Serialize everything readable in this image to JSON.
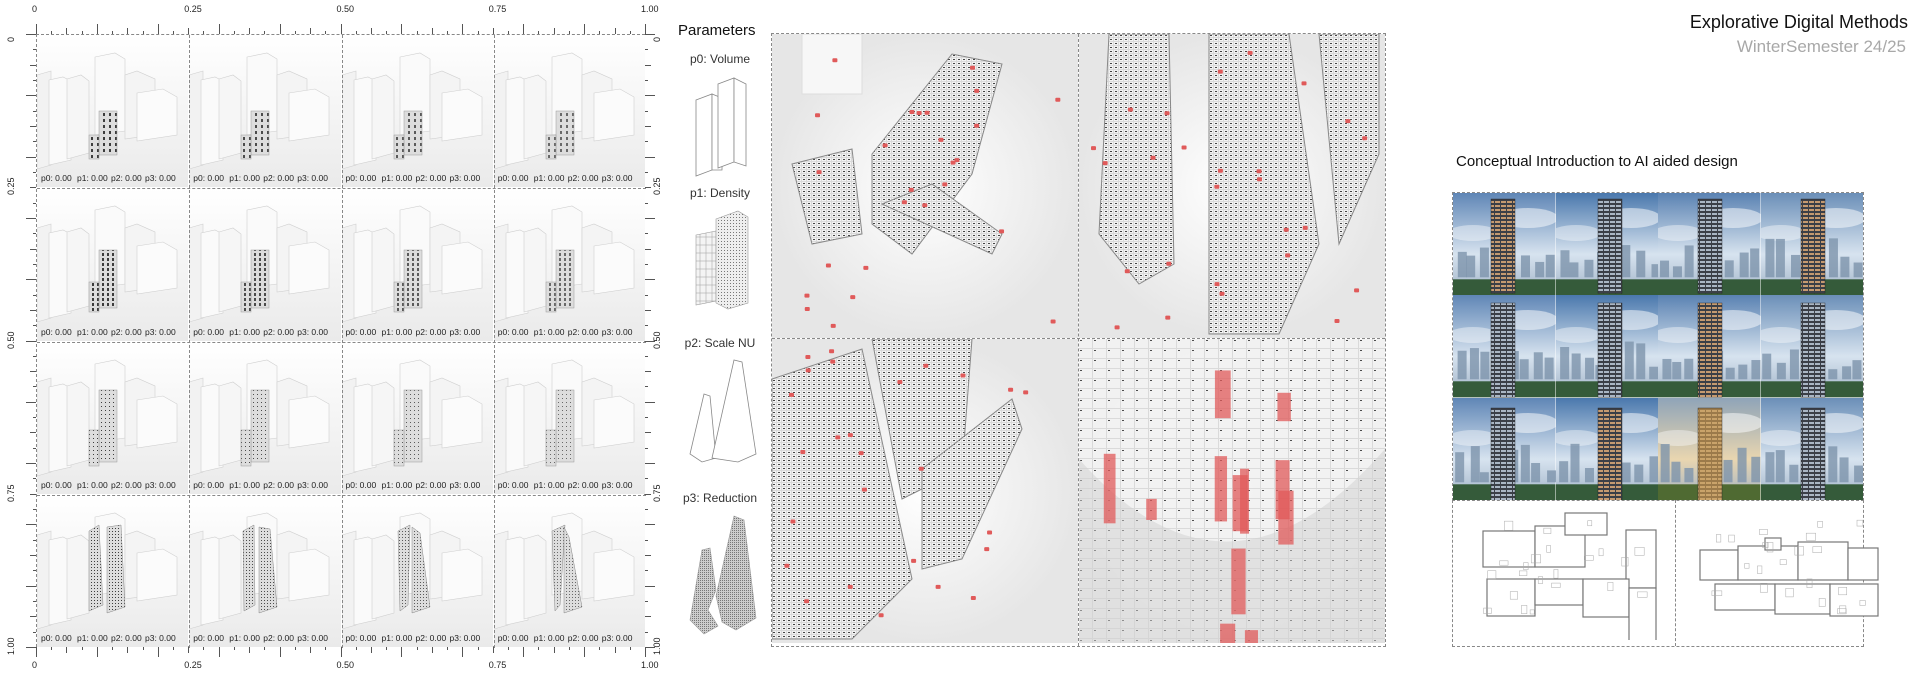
{
  "header": {
    "title": "Explorative Digital Methods",
    "subtitle": "WinterSemester 24/25"
  },
  "grid": {
    "axis_labels": [
      "0",
      "0.25",
      "0.50",
      "0.75",
      "1.00"
    ],
    "cells": [
      [
        "p0: 0.00",
        "p1: 0.00",
        "p2: 0.00",
        "p3: 0.00"
      ],
      [
        "p0: 0.00",
        "p1: 0.00",
        "p2: 0.00",
        "p3: 0.00"
      ],
      [
        "p0: 0.00",
        "p1: 0.00",
        "p2: 0.00",
        "p3: 0.00"
      ],
      [
        "p0: 0.00",
        "p1: 0.00",
        "p2: 0.00",
        "p3: 0.00"
      ],
      [
        "p0: 0.00",
        "p1: 0.00",
        "p2: 0.00",
        "p3: 0.00"
      ],
      [
        "p0: 0.00",
        "p1: 0.00",
        "p2: 0.00",
        "p3: 0.00"
      ],
      [
        "p0: 0.00",
        "p1: 0.00",
        "p2: 0.00",
        "p3: 0.00"
      ],
      [
        "p0: 0.00",
        "p1: 0.00",
        "p2: 0.00",
        "p3: 0.00"
      ],
      [
        "p0: 0.00",
        "p1: 0.00",
        "p2: 0.00",
        "p3: 0.00"
      ],
      [
        "p0: 0.00",
        "p1: 0.00",
        "p2: 0.00",
        "p3: 0.00"
      ],
      [
        "p0: 0.00",
        "p1: 0.00",
        "p2: 0.00",
        "p3: 0.00"
      ],
      [
        "p0: 0.00",
        "p1: 0.00",
        "p2: 0.00",
        "p3: 0.00"
      ],
      [
        "p0: 0.00",
        "p1: 0.00",
        "p2: 0.00",
        "p3: 0.00"
      ],
      [
        "p0: 0.00",
        "p1: 0.00",
        "p2: 0.00",
        "p3: 0.00"
      ],
      [
        "p0: 0.00",
        "p1: 0.00",
        "p2: 0.00",
        "p3: 0.00"
      ],
      [
        "p0: 0.00",
        "p1: 0.00",
        "p2: 0.00",
        "p3: 0.00"
      ]
    ]
  },
  "parameters": {
    "title": "Parameters",
    "items": [
      {
        "label": "p0: Volume",
        "icon": "two-box-volume-icon"
      },
      {
        "label": "p1: Density",
        "icon": "dense-block-icon"
      },
      {
        "label": "p2: Scale NU",
        "icon": "tapered-towers-icon"
      },
      {
        "label": "p3: Reduction",
        "icon": "eroded-towers-icon"
      }
    ]
  },
  "renders": {
    "accent": "#e05a5a",
    "panels": [
      "top-view-render",
      "tower-closeup-render",
      "low-angle-render",
      "block-field-render"
    ]
  },
  "ai_section": {
    "heading": "Conceptual Introduction to AI aided design",
    "images": 12,
    "plans": [
      "floor-plan-left",
      "floor-plan-right"
    ]
  }
}
